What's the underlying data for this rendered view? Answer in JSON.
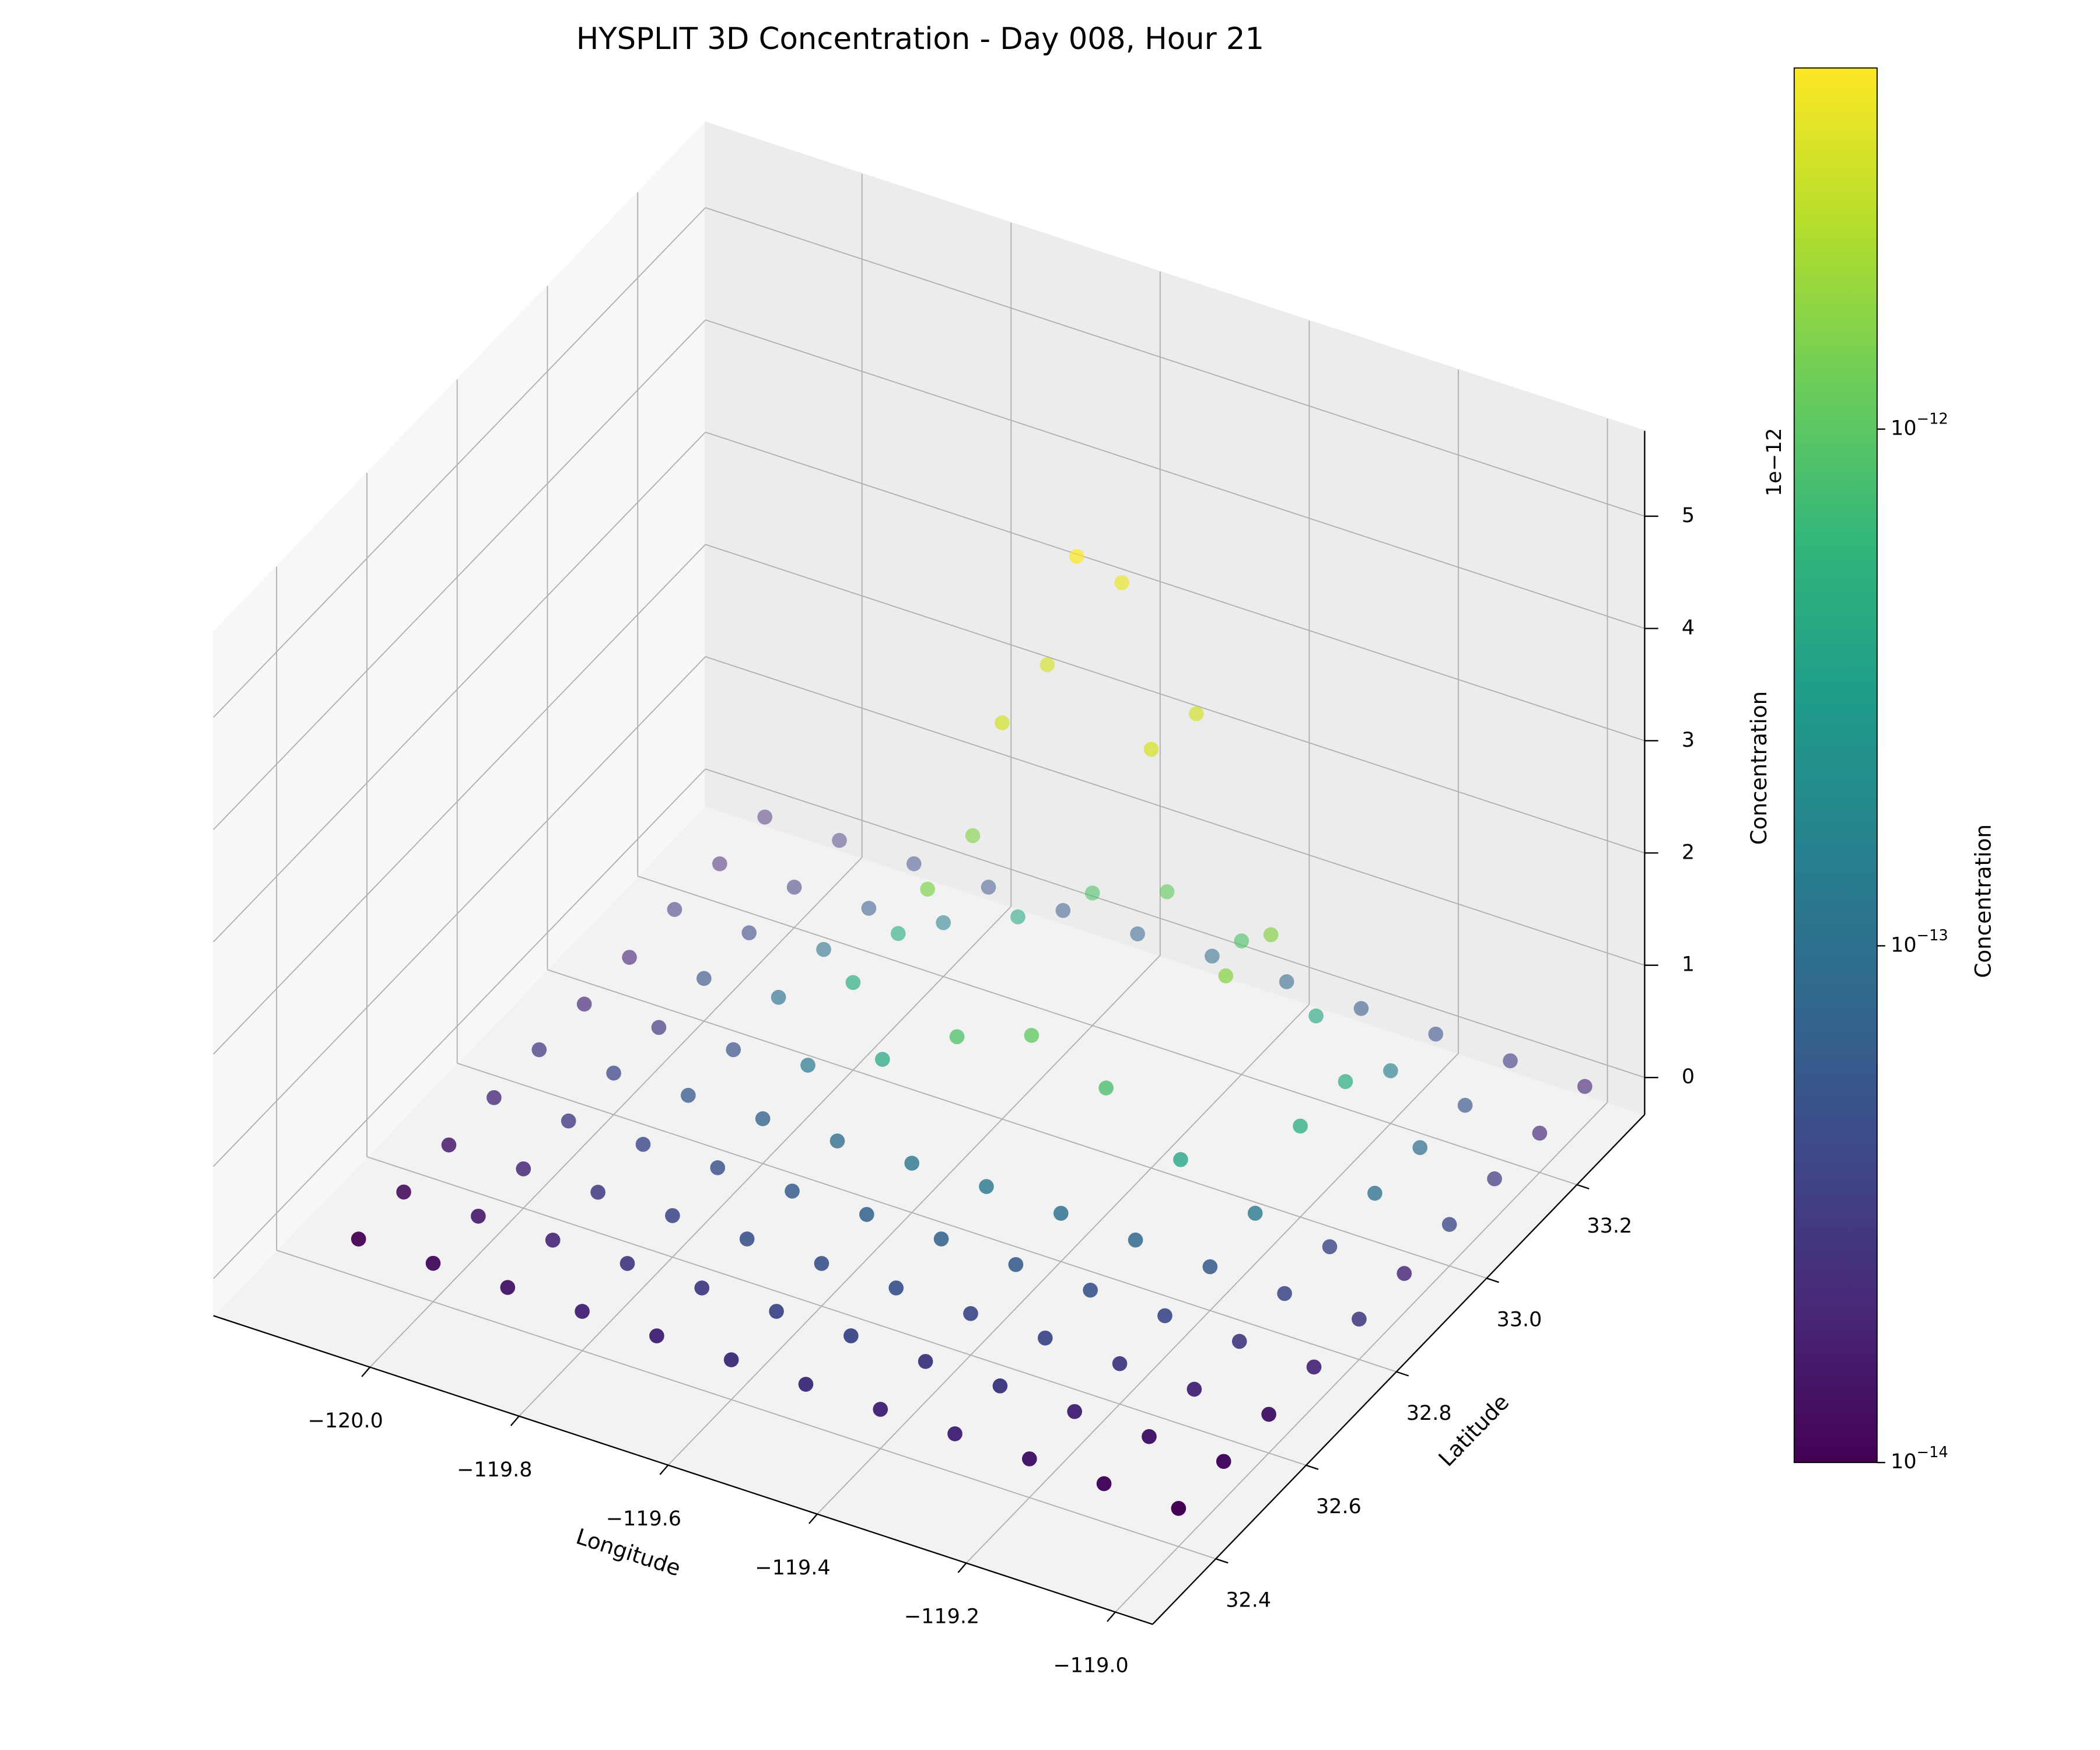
{
  "chart_data": {
    "type": "scatter3d",
    "title": "HYSPLIT 3D Concentration - Day 008, Hour 21",
    "xlabel": "Longitude",
    "ylabel": "Latitude",
    "zlabel": "Concentration",
    "z_offset_label": "1e−12",
    "grid": true,
    "xlim": [
      -120.21,
      -118.95
    ],
    "ylim": [
      32.26,
      33.35
    ],
    "zlim": [
      -0.33,
      5.76
    ],
    "xticks": [
      {
        "value": -120.0,
        "label": "−120.0"
      },
      {
        "value": -119.8,
        "label": "−119.8"
      },
      {
        "value": -119.6,
        "label": "−119.6"
      },
      {
        "value": -119.4,
        "label": "−119.4"
      },
      {
        "value": -119.2,
        "label": "−119.2"
      },
      {
        "value": -119.0,
        "label": "−119.0"
      }
    ],
    "yticks": [
      32.4,
      32.6,
      32.8,
      {
        "value": 33,
        "label": "33.0"
      },
      33.2
    ],
    "zticks": [
      0,
      1,
      2,
      3,
      4,
      5
    ],
    "x": [
      -120.1,
      -120.0,
      -119.9,
      -119.8,
      -119.7,
      -119.6,
      -119.5,
      -119.4,
      -119.3,
      -119.2,
      -119.1,
      -119.0,
      -120.1,
      -120.0,
      -119.9,
      -119.8,
      -119.7,
      -119.6,
      -119.5,
      -119.4,
      -119.3,
      -119.2,
      -119.1,
      -119.0,
      -120.1,
      -120.0,
      -119.9,
      -119.8,
      -119.7,
      -119.6,
      -119.5,
      -119.4,
      -119.3,
      -119.2,
      -119.1,
      -119.0,
      -120.1,
      -120.0,
      -119.9,
      -119.8,
      -119.7,
      -119.6,
      -119.5,
      -119.4,
      -119.3,
      -119.2,
      -119.1,
      -119.0,
      -120.1,
      -120.0,
      -119.9,
      -119.8,
      -119.7,
      -119.6,
      -119.5,
      -119.4,
      -119.3,
      -119.2,
      -119.1,
      -119.0,
      -120.1,
      -120.0,
      -119.9,
      -119.8,
      -119.7,
      -119.6,
      -119.5,
      -119.4,
      -119.3,
      -119.2,
      -119.1,
      -119.0,
      -120.1,
      -120.0,
      -119.9,
      -119.8,
      -119.7,
      -119.6,
      -119.5,
      -119.4,
      -119.3,
      -119.2,
      -119.1,
      -119.0,
      -120.1,
      -120.0,
      -119.9,
      -119.8,
      -119.7,
      -119.6,
      -119.5,
      -119.4,
      -119.3,
      -119.2,
      -119.1,
      -119.0,
      -120.1,
      -120.0,
      -119.9,
      -119.8,
      -119.7,
      -119.6,
      -119.5,
      -119.4,
      -119.3,
      -119.2,
      -119.1,
      -119.0,
      -120.1,
      -120.0,
      -119.9,
      -119.8,
      -119.7,
      -119.6,
      -119.5,
      -119.4,
      -119.3,
      -119.2,
      -119.1,
      -119.0
    ],
    "y": [
      32.4,
      32.4,
      32.4,
      32.4,
      32.4,
      32.4,
      32.4,
      32.4,
      32.4,
      32.4,
      32.4,
      32.4,
      32.5,
      32.5,
      32.5,
      32.5,
      32.5,
      32.5,
      32.5,
      32.5,
      32.5,
      32.5,
      32.5,
      32.5,
      32.6,
      32.6,
      32.6,
      32.6,
      32.6,
      32.6,
      32.6,
      32.6,
      32.6,
      32.6,
      32.6,
      32.6,
      32.7,
      32.7,
      32.7,
      32.7,
      32.7,
      32.7,
      32.7,
      32.7,
      32.7,
      32.7,
      32.7,
      32.7,
      32.8,
      32.8,
      32.8,
      32.8,
      32.8,
      32.8,
      32.8,
      32.8,
      32.8,
      32.8,
      32.8,
      32.8,
      32.9,
      32.9,
      32.9,
      32.9,
      32.9,
      32.9,
      32.9,
      32.9,
      32.9,
      32.9,
      32.9,
      32.9,
      33.0,
      33.0,
      33.0,
      33.0,
      33.0,
      33.0,
      33.0,
      33.0,
      33.0,
      33.0,
      33.0,
      33.0,
      33.1,
      33.1,
      33.1,
      33.1,
      33.1,
      33.1,
      33.1,
      33.1,
      33.1,
      33.1,
      33.1,
      33.1,
      33.2,
      33.2,
      33.2,
      33.2,
      33.2,
      33.2,
      33.2,
      33.2,
      33.2,
      33.2,
      33.2,
      33.2,
      33.3,
      33.3,
      33.3,
      33.3,
      33.3,
      33.3,
      33.3,
      33.3,
      33.3,
      33.3,
      33.3,
      33.3
    ],
    "z": [
      0.01,
      0.012,
      0.015,
      0.02,
      0.02,
      0.025,
      0.025,
      0.02,
      0.02,
      0.015,
      0.012,
      0.01,
      0.012,
      0.015,
      0.02,
      0.03,
      0.03,
      0.04,
      0.04,
      0.03,
      0.03,
      0.02,
      0.015,
      0.012,
      0.015,
      0.02,
      0.03,
      0.04,
      0.05,
      0.05,
      0.05,
      0.04,
      0.04,
      0.03,
      0.02,
      0.015,
      0.02,
      0.03,
      0.04,
      0.05,
      0.06,
      0.07,
      0.07,
      0.06,
      0.05,
      0.04,
      0.03,
      0.02,
      0.03,
      0.04,
      0.06,
      0.07,
      0.09,
      0.11,
      0.12,
      0.1,
      0.08,
      0.06,
      0.04,
      0.03,
      0.02,
      0.03,
      0.05,
      0.13,
      0.4,
      0.82,
      1.05,
      0.8,
      0.38,
      0.12,
      0.04,
      0.02,
      0.02,
      0.05,
      0.1,
      0.45,
      1.5,
      3.2,
      4.9,
      3.4,
      1.6,
      0.48,
      0.1,
      0.04,
      0.03,
      0.04,
      0.11,
      0.47,
      1.56,
      3.3,
      4.25,
      3.3,
      1.55,
      0.46,
      0.09,
      0.03,
      0.02,
      0.03,
      0.06,
      0.15,
      0.42,
      0.85,
      1.08,
      0.86,
      0.41,
      0.14,
      0.05,
      0.02,
      0.02,
      0.03,
      0.04,
      0.05,
      0.06,
      0.07,
      0.09,
      0.08,
      0.06,
      0.05,
      0.03,
      0.02
    ],
    "colorbar": {
      "label": "Concentration",
      "scale": "log",
      "clim": [
        0.01,
        5.0
      ],
      "ticks": [
        {
          "value": 0.01,
          "label": "10",
          "exponent": "−14"
        },
        {
          "value": 0.1,
          "label": "10",
          "exponent": "−13"
        },
        {
          "value": 1,
          "label": "10",
          "exponent": "−12"
        }
      ],
      "colormap": [
        "#440154",
        "#482878",
        "#3e4989",
        "#31688e",
        "#26828e",
        "#1f9e89",
        "#35b779",
        "#6ece58",
        "#b5de2b",
        "#fde725"
      ]
    }
  }
}
